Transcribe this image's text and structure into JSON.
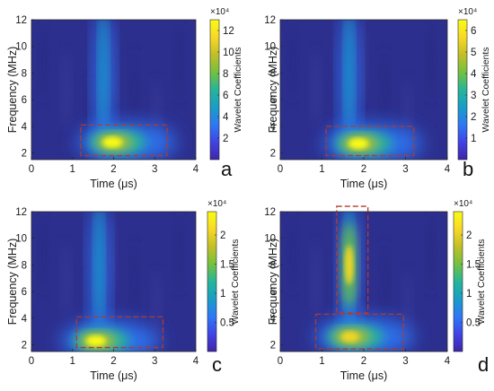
{
  "chart_data": [
    {
      "type": "heatmap",
      "panel_label": "a",
      "xlabel": "Time (μs)",
      "ylabel": "Frequency (MHz)",
      "colorbar_label": "Wavelet Coefficients",
      "colorbar_scale": "×10⁴",
      "xlim": [
        0,
        4
      ],
      "ylim": [
        1.5,
        12
      ],
      "xticks": [
        "0",
        "1",
        "2",
        "3",
        "4"
      ],
      "yticks": [
        "2",
        "4",
        "6",
        "8",
        "10",
        "12"
      ],
      "colorbar_range": [
        0,
        13
      ],
      "colorbar_ticks": [
        "2",
        "4",
        "6",
        "8",
        "10",
        "12"
      ],
      "peak": {
        "time_us": 2.1,
        "frequency_mhz": 2.8
      },
      "highlight_boxes": [
        {
          "time_us": [
            1.2,
            3.3
          ],
          "frequency_mhz": [
            1.8,
            4.1
          ],
          "color": "#b03a2e"
        }
      ]
    },
    {
      "type": "heatmap",
      "panel_label": "b",
      "xlabel": "Time (μs)",
      "ylabel": "Frequency (MHz)",
      "colorbar_label": "Wavelet Coefficients",
      "colorbar_scale": "×10⁴",
      "xlim": [
        0,
        4
      ],
      "ylim": [
        1.5,
        12
      ],
      "xticks": [
        "0",
        "1",
        "2",
        "3",
        "4"
      ],
      "yticks": [
        "2",
        "4",
        "6",
        "8",
        "10",
        "12"
      ],
      "colorbar_range": [
        0,
        6.5
      ],
      "colorbar_ticks": [
        "1",
        "2",
        "3",
        "4",
        "5",
        "6"
      ],
      "peak": {
        "time_us": 2.0,
        "frequency_mhz": 2.7
      },
      "highlight_boxes": [
        {
          "time_us": [
            1.1,
            3.2
          ],
          "frequency_mhz": [
            1.8,
            4.0
          ],
          "color": "#b03a2e"
        }
      ]
    },
    {
      "type": "heatmap",
      "panel_label": "c",
      "xlabel": "Time (μs)",
      "ylabel": "Frequency (MHz)",
      "colorbar_label": "Wavelet Coefficients",
      "colorbar_scale": "×10⁴",
      "xlim": [
        0,
        4
      ],
      "ylim": [
        1.5,
        12
      ],
      "xticks": [
        "0",
        "1",
        "2",
        "3",
        "4"
      ],
      "yticks": [
        "2",
        "4",
        "6",
        "8",
        "10",
        "12"
      ],
      "colorbar_range": [
        0,
        2.4
      ],
      "colorbar_ticks": [
        "0.5",
        "1",
        "1.5",
        "2"
      ],
      "peak": {
        "time_us": 1.7,
        "frequency_mhz": 2.3
      },
      "highlight_boxes": [
        {
          "time_us": [
            1.1,
            3.2
          ],
          "frequency_mhz": [
            1.8,
            4.1
          ],
          "color": "#b03a2e"
        }
      ]
    },
    {
      "type": "heatmap",
      "panel_label": "d",
      "xlabel": "Time (μs)",
      "ylabel": "Frequency (MHz)",
      "colorbar_label": "Wavelet Coefficients",
      "colorbar_scale": "×10⁴",
      "xlim": [
        0,
        4
      ],
      "ylim": [
        1.5,
        12
      ],
      "xticks": [
        "0",
        "1",
        "2",
        "3",
        "4"
      ],
      "yticks": [
        "2",
        "4",
        "6",
        "8",
        "10",
        "12"
      ],
      "colorbar_range": [
        0,
        2.4
      ],
      "colorbar_ticks": [
        "0.5",
        "1",
        "1.5",
        "2"
      ],
      "peak": {
        "time_us": 1.7,
        "frequency_mhz": 8.0
      },
      "highlight_boxes": [
        {
          "time_us": [
            1.35,
            2.1
          ],
          "frequency_mhz": [
            4.4,
            12.4
          ],
          "color": "#b03a2e"
        },
        {
          "time_us": [
            0.85,
            2.95
          ],
          "frequency_mhz": [
            1.7,
            4.3
          ],
          "color": "#b03a2e"
        }
      ]
    }
  ],
  "colors": {
    "background_field": "#2d2f8e",
    "box_outline": "#b03a2e",
    "colormap": [
      "#3e26a8",
      "#4143e5",
      "#2e78f6",
      "#189ec6",
      "#26b59a",
      "#74c13e",
      "#c2bf27",
      "#f7d925",
      "#f9fb15"
    ]
  }
}
